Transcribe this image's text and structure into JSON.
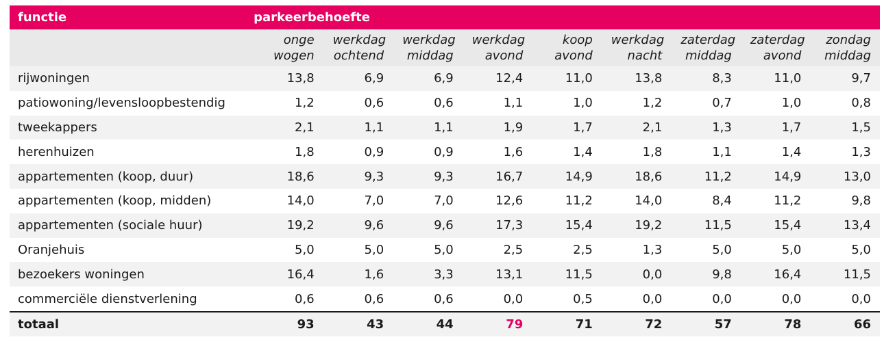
{
  "header": {
    "col1": "functie",
    "col2": "parkeerbehoefte"
  },
  "columns": [
    [
      "onge",
      "wogen"
    ],
    [
      "werkdag",
      "ochtend"
    ],
    [
      "werkdag",
      "middag"
    ],
    [
      "werkdag",
      "avond"
    ],
    [
      "koop",
      "avond"
    ],
    [
      "werkdag",
      "nacht"
    ],
    [
      "zaterdag",
      "middag"
    ],
    [
      "zaterdag",
      "avond"
    ],
    [
      "zondag",
      "middag"
    ]
  ],
  "rows": [
    {
      "label": "rijwoningen",
      "values": [
        "13,8",
        "6,9",
        "6,9",
        "12,4",
        "11,0",
        "13,8",
        "8,3",
        "11,0",
        "9,7"
      ]
    },
    {
      "label": "patiowoning/levensloopbestendig",
      "values": [
        "1,2",
        "0,6",
        "0,6",
        "1,1",
        "1,0",
        "1,2",
        "0,7",
        "1,0",
        "0,8"
      ]
    },
    {
      "label": "tweekappers",
      "values": [
        "2,1",
        "1,1",
        "1,1",
        "1,9",
        "1,7",
        "2,1",
        "1,3",
        "1,7",
        "1,5"
      ]
    },
    {
      "label": "herenhuizen",
      "values": [
        "1,8",
        "0,9",
        "0,9",
        "1,6",
        "1,4",
        "1,8",
        "1,1",
        "1,4",
        "1,3"
      ]
    },
    {
      "label": "appartementen (koop, duur)",
      "values": [
        "18,6",
        "9,3",
        "9,3",
        "16,7",
        "14,9",
        "18,6",
        "11,2",
        "14,9",
        "13,0"
      ]
    },
    {
      "label": "appartementen (koop, midden)",
      "values": [
        "14,0",
        "7,0",
        "7,0",
        "12,6",
        "11,2",
        "14,0",
        "8,4",
        "11,2",
        "9,8"
      ]
    },
    {
      "label": "appartementen (sociale huur)",
      "values": [
        "19,2",
        "9,6",
        "9,6",
        "17,3",
        "15,4",
        "19,2",
        "11,5",
        "15,4",
        "13,4"
      ]
    },
    {
      "label": "Oranjehuis",
      "values": [
        "5,0",
        "5,0",
        "5,0",
        "2,5",
        "2,5",
        "1,3",
        "5,0",
        "5,0",
        "5,0"
      ]
    },
    {
      "label": "bezoekers woningen",
      "values": [
        "16,4",
        "1,6",
        "3,3",
        "13,1",
        "11,5",
        "0,0",
        "9,8",
        "16,4",
        "11,5"
      ]
    },
    {
      "label": "commerciële dienstverlening",
      "values": [
        "0,6",
        "0,6",
        "0,6",
        "0,0",
        "0,5",
        "0,0",
        "0,0",
        "0,0",
        "0,0"
      ]
    }
  ],
  "total": {
    "label": "totaal",
    "values": [
      "93",
      "43",
      "44",
      "79",
      "71",
      "72",
      "57",
      "78",
      "66"
    ],
    "highlight_index": 3,
    "highlight_color": "#e6005f"
  },
  "colors": {
    "header_bg": "#e6005f",
    "subheader_bg": "#e9e9e9",
    "stripe_bg": "#f2f2f2"
  }
}
